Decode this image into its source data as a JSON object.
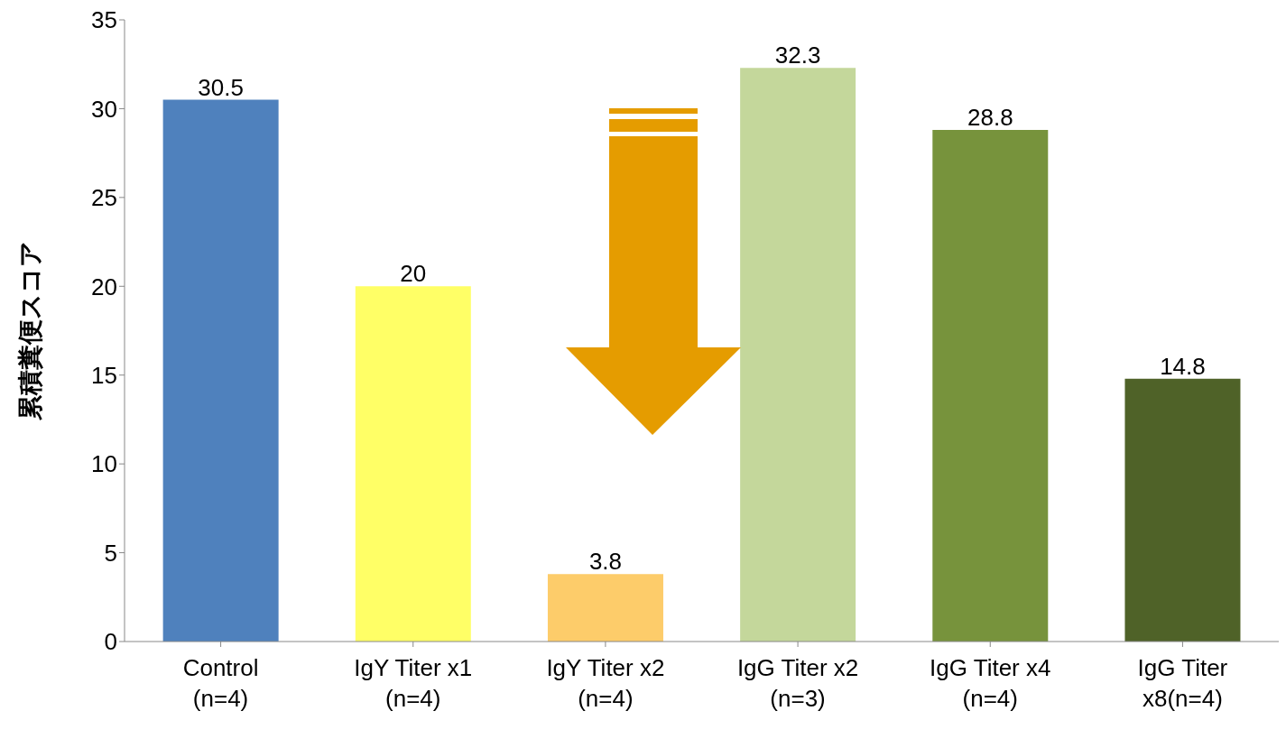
{
  "chart_data": {
    "type": "bar",
    "ylabel": "累積糞便スコア",
    "categories": [
      "Control (n=4)",
      "IgY Titer x1 (n=4)",
      "IgY Titer x2 (n=4)",
      "IgG Titer x2 (n=3)",
      "IgG Titer x4 (n=4)",
      "IgG Titer x8(n=4)"
    ],
    "values": [
      30.5,
      20,
      3.8,
      32.3,
      28.8,
      14.8
    ],
    "colors": [
      "#4f81bd",
      "#ffff66",
      "#fdcc6a",
      "#c4d79b",
      "#77933c",
      "#4f6228"
    ],
    "ylim": [
      0,
      35
    ],
    "yticks": [
      0,
      5,
      10,
      15,
      20,
      25,
      30,
      35
    ],
    "grid": false,
    "legend": false,
    "data_labels": true
  }
}
